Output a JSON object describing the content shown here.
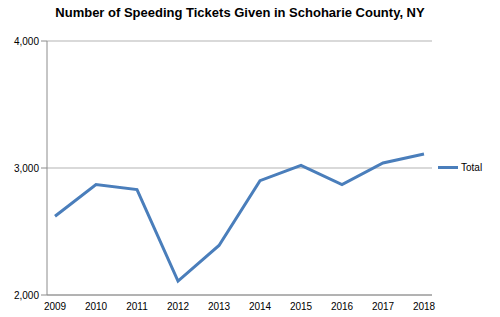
{
  "chart_data": {
    "type": "line",
    "title": "Number of Speeding Tickets Given in Schoharie County, NY",
    "categories": [
      "2009",
      "2010",
      "2011",
      "2012",
      "2013",
      "2014",
      "2015",
      "2016",
      "2017",
      "2018"
    ],
    "series": [
      {
        "name": "Total",
        "color": "#4a7ebb",
        "values": [
          2620,
          2870,
          2830,
          2110,
          2390,
          2900,
          3020,
          2870,
          3040,
          3110
        ]
      }
    ],
    "ylim": [
      2000,
      4000
    ],
    "yticks": [
      {
        "value": 2000,
        "label": "2,000"
      },
      {
        "value": 3000,
        "label": "3,000"
      },
      {
        "value": 4000,
        "label": "4,000"
      }
    ],
    "grid": true,
    "legend": "right"
  }
}
